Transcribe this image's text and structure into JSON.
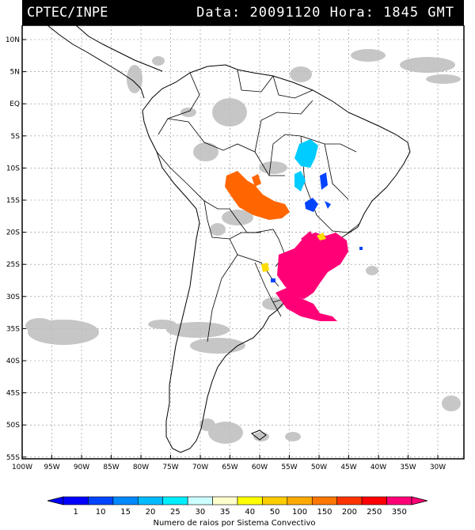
{
  "header": {
    "source": "CPTEC/INPE",
    "date_label": "Data:",
    "date_value": "20091120",
    "time_label": "Hora:",
    "time_value": "1845 GMT"
  },
  "lat_labels": [
    "10N",
    "5N",
    "EQ",
    "5S",
    "10S",
    "15S",
    "20S",
    "25S",
    "30S",
    "35S",
    "40S",
    "45S",
    "50S",
    "55S"
  ],
  "lon_labels": [
    "100W",
    "95W",
    "90W",
    "85W",
    "80W",
    "75W",
    "70W",
    "65W",
    "60W",
    "55W",
    "50W",
    "45W",
    "40W",
    "35W",
    "30W"
  ],
  "legend": {
    "title": "Numero de raios por Sistema Convectivo",
    "values": [
      "1",
      "10",
      "15",
      "20",
      "25",
      "30",
      "35",
      "40",
      "50",
      "100",
      "150",
      "200",
      "250",
      "350"
    ],
    "colors": [
      "#0000ff",
      "#0044ff",
      "#0088ff",
      "#00bbff",
      "#00eeff",
      "#ccffff",
      "#ffffcc",
      "#ffff00",
      "#ffcc00",
      "#ffaa00",
      "#ff7700",
      "#ff3300",
      "#ff0000",
      "#ff0077"
    ]
  },
  "systems": [
    {
      "name": "cyan-system",
      "color": "#00ccff",
      "level": "25"
    },
    {
      "name": "blue-system",
      "color": "#0044ff",
      "level": "10"
    },
    {
      "name": "orange-system",
      "color": "#ff6600",
      "level": "200"
    },
    {
      "name": "magenta-system",
      "color": "#ff0077",
      "level": "350"
    },
    {
      "name": "yellow-system",
      "color": "#ffdd00",
      "level": "40"
    }
  ]
}
